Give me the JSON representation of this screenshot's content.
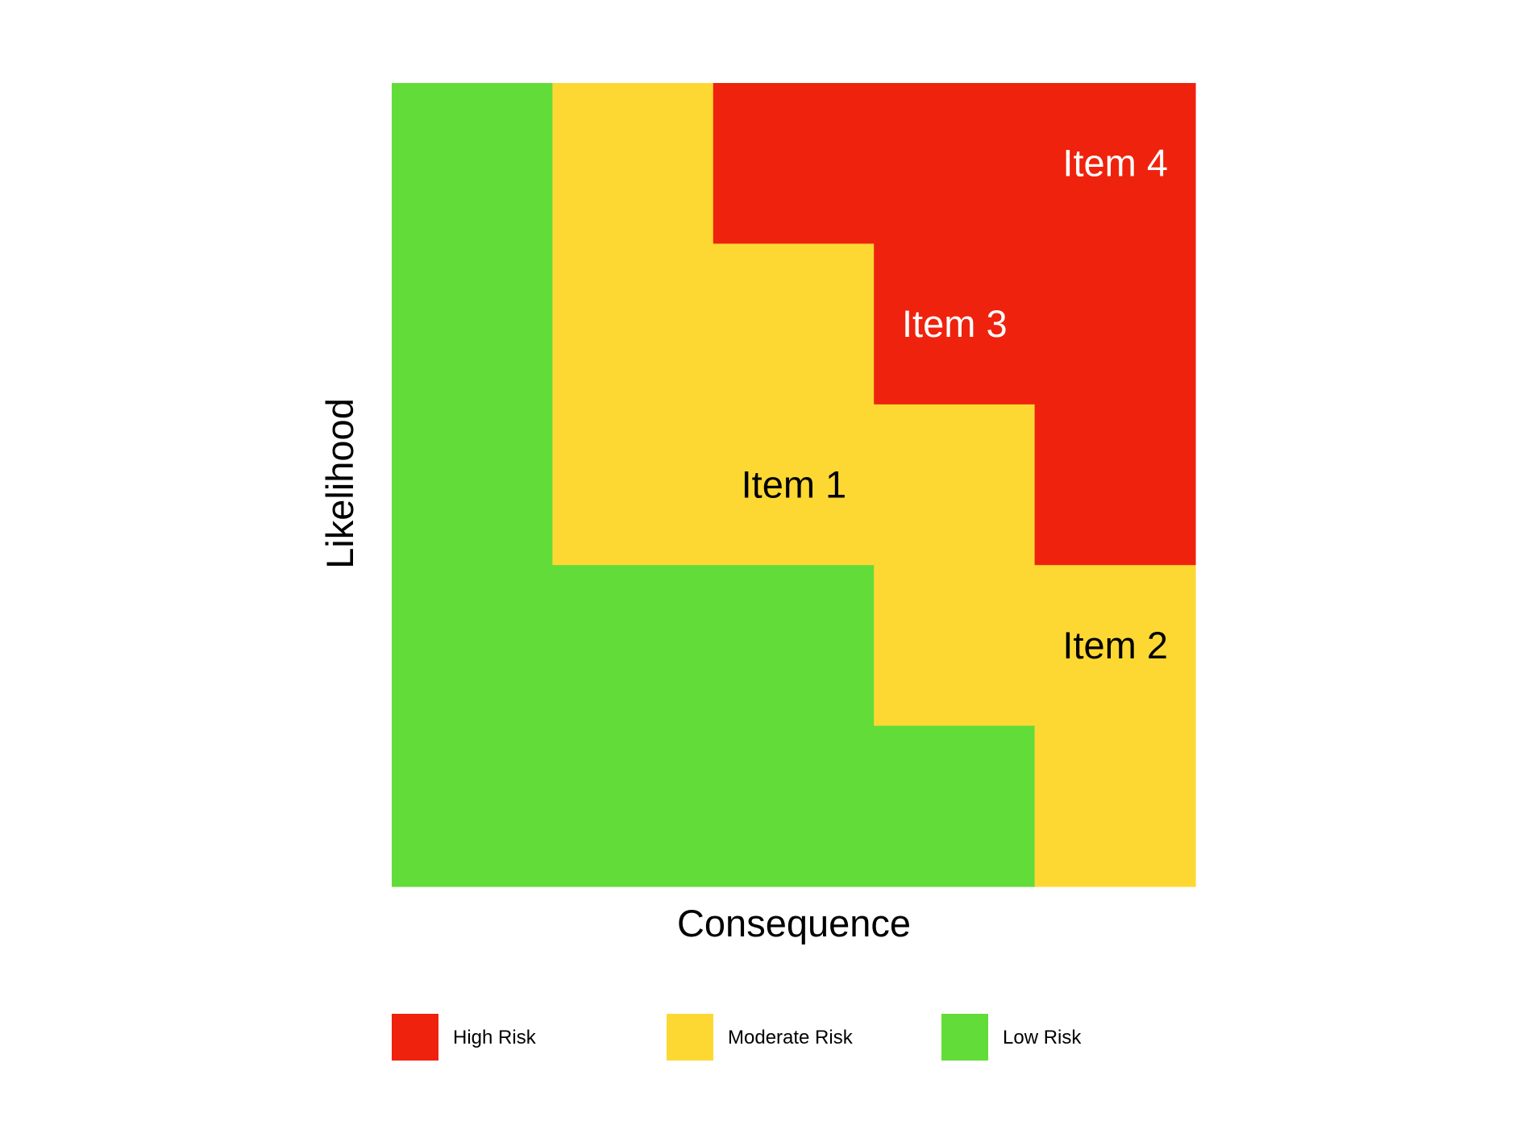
{
  "chart_data": {
    "type": "heatmap",
    "title": "",
    "xlabel": "Consequence",
    "ylabel": "Likelihood",
    "grid_size": 5,
    "x_levels": [
      1,
      2,
      3,
      4,
      5
    ],
    "y_levels": [
      1,
      2,
      3,
      4,
      5
    ],
    "risk_levels": {
      "high": {
        "label": "High Risk",
        "color": "#ef220d"
      },
      "moderate": {
        "label": "Moderate Risk",
        "color": "#fdd833"
      },
      "low": {
        "label": "Low Risk",
        "color": "#62dc38"
      }
    },
    "cells_top_to_bottom": [
      [
        "low",
        "moderate",
        "high",
        "high",
        "high"
      ],
      [
        "low",
        "moderate",
        "moderate",
        "high",
        "high"
      ],
      [
        "low",
        "moderate",
        "moderate",
        "moderate",
        "high"
      ],
      [
        "low",
        "low",
        "low",
        "moderate",
        "moderate"
      ],
      [
        "low",
        "low",
        "low",
        "low",
        "moderate"
      ]
    ],
    "items": [
      {
        "label": "Item 1",
        "consequence": 3,
        "likelihood": 3,
        "text_color": "#000000"
      },
      {
        "label": "Item 2",
        "consequence": 5,
        "likelihood": 2,
        "text_color": "#000000"
      },
      {
        "label": "Item 3",
        "consequence": 4,
        "likelihood": 4,
        "text_color": "#ffffff"
      },
      {
        "label": "Item 4",
        "consequence": 5,
        "likelihood": 5,
        "text_color": "#ffffff"
      }
    ],
    "legend": [
      {
        "key": "high",
        "label": "High Risk"
      },
      {
        "key": "moderate",
        "label": "Moderate Risk"
      },
      {
        "key": "low",
        "label": "Low Risk"
      }
    ],
    "legend_placement": "bottom"
  }
}
